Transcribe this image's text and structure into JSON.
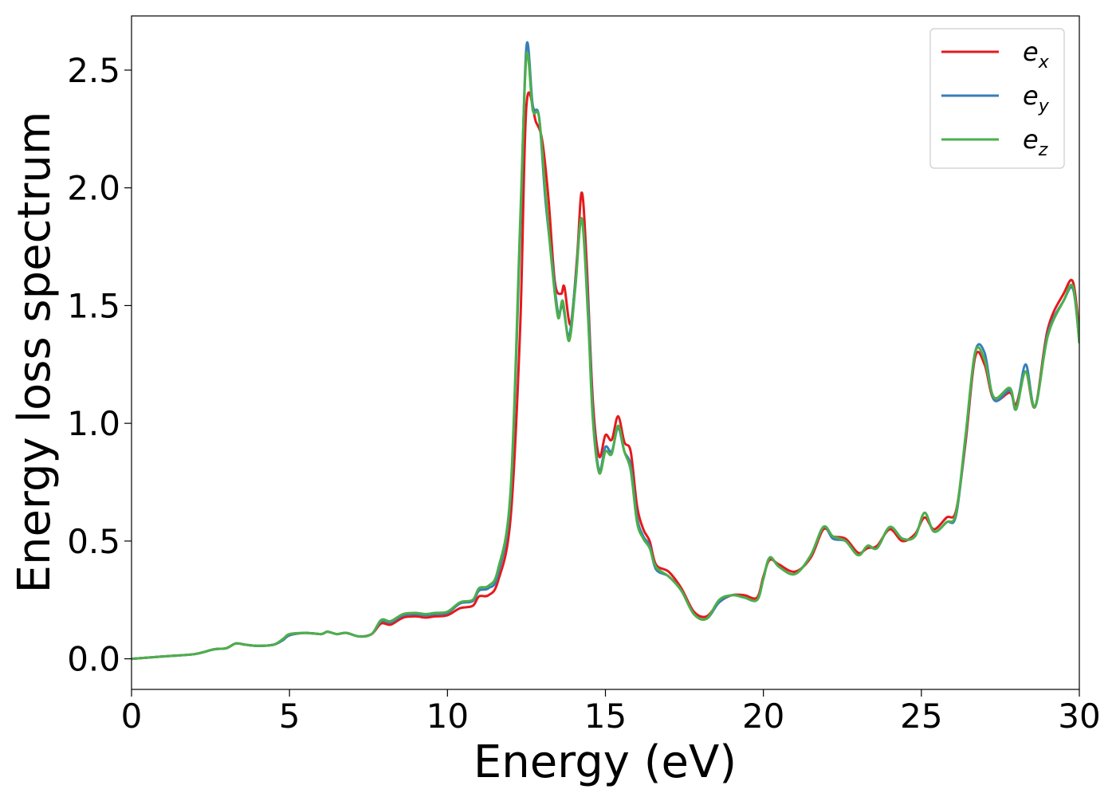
{
  "chart_data": {
    "type": "line",
    "title": "",
    "xlabel": "Energy (eV)",
    "ylabel": "Energy loss spectrum",
    "xlim": [
      0,
      30
    ],
    "ylim": [
      -0.13,
      2.73
    ],
    "xticks": [
      0,
      5,
      10,
      15,
      20,
      25,
      30
    ],
    "xtick_labels": [
      "0",
      "5",
      "10",
      "15",
      "20",
      "25",
      "30"
    ],
    "yticks": [
      0.0,
      0.5,
      1.0,
      1.5,
      2.0,
      2.5
    ],
    "ytick_labels": [
      "0.0",
      "0.5",
      "1.0",
      "1.5",
      "2.0",
      "2.5"
    ],
    "grid": false,
    "legend_position": "top-right",
    "series": [
      {
        "name": "e_x",
        "label_main": "e",
        "label_sub": "x",
        "color": "#e41a1c",
        "points": [
          [
            0,
            0.0
          ],
          [
            1,
            0.01
          ],
          [
            2,
            0.02
          ],
          [
            2.6,
            0.04
          ],
          [
            3.0,
            0.045
          ],
          [
            3.3,
            0.065
          ],
          [
            3.6,
            0.06
          ],
          [
            4.0,
            0.055
          ],
          [
            4.5,
            0.06
          ],
          [
            4.8,
            0.08
          ],
          [
            5.0,
            0.1
          ],
          [
            5.5,
            0.11
          ],
          [
            6.0,
            0.105
          ],
          [
            6.2,
            0.115
          ],
          [
            6.5,
            0.105
          ],
          [
            6.8,
            0.11
          ],
          [
            7.2,
            0.095
          ],
          [
            7.6,
            0.105
          ],
          [
            7.9,
            0.15
          ],
          [
            8.2,
            0.145
          ],
          [
            8.6,
            0.175
          ],
          [
            9.0,
            0.18
          ],
          [
            9.3,
            0.175
          ],
          [
            9.6,
            0.18
          ],
          [
            10.0,
            0.185
          ],
          [
            10.4,
            0.215
          ],
          [
            10.8,
            0.225
          ],
          [
            11.0,
            0.265
          ],
          [
            11.3,
            0.27
          ],
          [
            11.6,
            0.33
          ],
          [
            12.0,
            0.6
          ],
          [
            12.3,
            1.4
          ],
          [
            12.5,
            2.35
          ],
          [
            12.8,
            2.28
          ],
          [
            13.0,
            2.2
          ],
          [
            13.2,
            1.95
          ],
          [
            13.4,
            1.6
          ],
          [
            13.6,
            1.55
          ],
          [
            13.7,
            1.58
          ],
          [
            13.9,
            1.42
          ],
          [
            14.1,
            1.7
          ],
          [
            14.25,
            1.98
          ],
          [
            14.4,
            1.7
          ],
          [
            14.6,
            1.1
          ],
          [
            14.8,
            0.86
          ],
          [
            15.0,
            0.95
          ],
          [
            15.2,
            0.93
          ],
          [
            15.4,
            1.03
          ],
          [
            15.6,
            0.92
          ],
          [
            15.8,
            0.88
          ],
          [
            16.0,
            0.65
          ],
          [
            16.2,
            0.55
          ],
          [
            16.4,
            0.5
          ],
          [
            16.6,
            0.4
          ],
          [
            17.0,
            0.37
          ],
          [
            17.4,
            0.3
          ],
          [
            17.8,
            0.2
          ],
          [
            18.2,
            0.18
          ],
          [
            18.6,
            0.24
          ],
          [
            19.0,
            0.27
          ],
          [
            19.4,
            0.27
          ],
          [
            19.8,
            0.26
          ],
          [
            20.0,
            0.35
          ],
          [
            20.2,
            0.42
          ],
          [
            20.5,
            0.4
          ],
          [
            21.0,
            0.37
          ],
          [
            21.5,
            0.43
          ],
          [
            21.9,
            0.55
          ],
          [
            22.2,
            0.52
          ],
          [
            22.6,
            0.51
          ],
          [
            23.0,
            0.45
          ],
          [
            23.3,
            0.47
          ],
          [
            23.6,
            0.48
          ],
          [
            24.0,
            0.55
          ],
          [
            24.4,
            0.5
          ],
          [
            24.8,
            0.53
          ],
          [
            25.1,
            0.6
          ],
          [
            25.4,
            0.55
          ],
          [
            25.8,
            0.6
          ],
          [
            26.1,
            0.63
          ],
          [
            26.4,
            0.92
          ],
          [
            26.7,
            1.28
          ],
          [
            27.0,
            1.25
          ],
          [
            27.3,
            1.1
          ],
          [
            27.8,
            1.13
          ],
          [
            28.0,
            1.08
          ],
          [
            28.3,
            1.22
          ],
          [
            28.6,
            1.07
          ],
          [
            29.0,
            1.4
          ],
          [
            29.5,
            1.55
          ],
          [
            29.8,
            1.6
          ],
          [
            30,
            1.38
          ]
        ]
      },
      {
        "name": "e_y",
        "label_main": "e",
        "label_sub": "y",
        "color": "#377eb8",
        "points": [
          [
            0,
            0.0
          ],
          [
            1,
            0.01
          ],
          [
            2,
            0.02
          ],
          [
            2.6,
            0.04
          ],
          [
            3.0,
            0.045
          ],
          [
            3.3,
            0.065
          ],
          [
            3.6,
            0.06
          ],
          [
            4.0,
            0.055
          ],
          [
            4.5,
            0.06
          ],
          [
            4.8,
            0.08
          ],
          [
            5.0,
            0.1
          ],
          [
            5.5,
            0.11
          ],
          [
            6.0,
            0.105
          ],
          [
            6.2,
            0.115
          ],
          [
            6.5,
            0.105
          ],
          [
            6.8,
            0.11
          ],
          [
            7.2,
            0.095
          ],
          [
            7.6,
            0.105
          ],
          [
            7.9,
            0.16
          ],
          [
            8.2,
            0.155
          ],
          [
            8.6,
            0.185
          ],
          [
            9.0,
            0.19
          ],
          [
            9.3,
            0.185
          ],
          [
            9.6,
            0.19
          ],
          [
            10.0,
            0.195
          ],
          [
            10.4,
            0.235
          ],
          [
            10.8,
            0.245
          ],
          [
            11.0,
            0.29
          ],
          [
            11.3,
            0.3
          ],
          [
            11.6,
            0.36
          ],
          [
            12.0,
            0.7
          ],
          [
            12.3,
            1.8
          ],
          [
            12.5,
            2.6
          ],
          [
            12.7,
            2.35
          ],
          [
            12.9,
            2.3
          ],
          [
            13.1,
            1.95
          ],
          [
            13.3,
            1.7
          ],
          [
            13.5,
            1.47
          ],
          [
            13.65,
            1.5
          ],
          [
            13.85,
            1.37
          ],
          [
            14.05,
            1.6
          ],
          [
            14.25,
            1.87
          ],
          [
            14.45,
            1.5
          ],
          [
            14.6,
            1.05
          ],
          [
            14.8,
            0.8
          ],
          [
            15.0,
            0.9
          ],
          [
            15.2,
            0.88
          ],
          [
            15.4,
            0.98
          ],
          [
            15.6,
            0.88
          ],
          [
            15.8,
            0.82
          ],
          [
            16.0,
            0.6
          ],
          [
            16.2,
            0.52
          ],
          [
            16.4,
            0.48
          ],
          [
            16.6,
            0.38
          ],
          [
            17.0,
            0.35
          ],
          [
            17.4,
            0.29
          ],
          [
            17.8,
            0.19
          ],
          [
            18.2,
            0.17
          ],
          [
            18.6,
            0.24
          ],
          [
            19.0,
            0.27
          ],
          [
            19.4,
            0.26
          ],
          [
            19.8,
            0.25
          ],
          [
            20.0,
            0.34
          ],
          [
            20.2,
            0.43
          ],
          [
            20.5,
            0.39
          ],
          [
            21.0,
            0.36
          ],
          [
            21.5,
            0.44
          ],
          [
            21.9,
            0.56
          ],
          [
            22.2,
            0.51
          ],
          [
            22.6,
            0.5
          ],
          [
            23.0,
            0.44
          ],
          [
            23.3,
            0.48
          ],
          [
            23.6,
            0.47
          ],
          [
            24.0,
            0.56
          ],
          [
            24.4,
            0.51
          ],
          [
            24.8,
            0.52
          ],
          [
            25.1,
            0.62
          ],
          [
            25.4,
            0.54
          ],
          [
            25.8,
            0.58
          ],
          [
            26.1,
            0.61
          ],
          [
            26.4,
            0.94
          ],
          [
            26.7,
            1.3
          ],
          [
            27.0,
            1.3
          ],
          [
            27.3,
            1.1
          ],
          [
            27.8,
            1.14
          ],
          [
            28.0,
            1.06
          ],
          [
            28.3,
            1.25
          ],
          [
            28.6,
            1.07
          ],
          [
            29.0,
            1.38
          ],
          [
            29.5,
            1.52
          ],
          [
            29.8,
            1.57
          ],
          [
            30,
            1.35
          ]
        ]
      },
      {
        "name": "e_z",
        "label_main": "e",
        "label_sub": "z",
        "color": "#4daf4a",
        "points": [
          [
            0,
            0.0
          ],
          [
            1,
            0.01
          ],
          [
            2,
            0.02
          ],
          [
            2.6,
            0.04
          ],
          [
            3.0,
            0.045
          ],
          [
            3.3,
            0.065
          ],
          [
            3.6,
            0.06
          ],
          [
            4.0,
            0.055
          ],
          [
            4.5,
            0.06
          ],
          [
            4.8,
            0.085
          ],
          [
            5.0,
            0.105
          ],
          [
            5.5,
            0.11
          ],
          [
            6.0,
            0.105
          ],
          [
            6.2,
            0.115
          ],
          [
            6.5,
            0.105
          ],
          [
            6.8,
            0.11
          ],
          [
            7.2,
            0.095
          ],
          [
            7.6,
            0.105
          ],
          [
            7.9,
            0.165
          ],
          [
            8.2,
            0.16
          ],
          [
            8.6,
            0.19
          ],
          [
            9.0,
            0.195
          ],
          [
            9.3,
            0.19
          ],
          [
            9.6,
            0.195
          ],
          [
            10.0,
            0.2
          ],
          [
            10.4,
            0.24
          ],
          [
            10.8,
            0.25
          ],
          [
            11.0,
            0.3
          ],
          [
            11.3,
            0.31
          ],
          [
            11.6,
            0.38
          ],
          [
            12.0,
            0.72
          ],
          [
            12.3,
            1.85
          ],
          [
            12.5,
            2.56
          ],
          [
            12.7,
            2.33
          ],
          [
            12.9,
            2.3
          ],
          [
            13.1,
            1.98
          ],
          [
            13.3,
            1.68
          ],
          [
            13.5,
            1.45
          ],
          [
            13.65,
            1.52
          ],
          [
            13.85,
            1.35
          ],
          [
            14.05,
            1.58
          ],
          [
            14.25,
            1.87
          ],
          [
            14.45,
            1.45
          ],
          [
            14.6,
            1.02
          ],
          [
            14.8,
            0.79
          ],
          [
            15.0,
            0.88
          ],
          [
            15.2,
            0.87
          ],
          [
            15.4,
            0.99
          ],
          [
            15.6,
            0.88
          ],
          [
            15.8,
            0.8
          ],
          [
            16.0,
            0.58
          ],
          [
            16.2,
            0.51
          ],
          [
            16.4,
            0.47
          ],
          [
            16.6,
            0.39
          ],
          [
            17.0,
            0.35
          ],
          [
            17.4,
            0.29
          ],
          [
            17.8,
            0.19
          ],
          [
            18.2,
            0.17
          ],
          [
            18.6,
            0.25
          ],
          [
            19.0,
            0.27
          ],
          [
            19.4,
            0.26
          ],
          [
            19.8,
            0.25
          ],
          [
            20.0,
            0.34
          ],
          [
            20.2,
            0.43
          ],
          [
            20.5,
            0.39
          ],
          [
            21.0,
            0.36
          ],
          [
            21.5,
            0.44
          ],
          [
            21.9,
            0.56
          ],
          [
            22.2,
            0.52
          ],
          [
            22.6,
            0.5
          ],
          [
            23.0,
            0.44
          ],
          [
            23.3,
            0.48
          ],
          [
            23.6,
            0.47
          ],
          [
            24.0,
            0.56
          ],
          [
            24.4,
            0.51
          ],
          [
            24.8,
            0.52
          ],
          [
            25.1,
            0.62
          ],
          [
            25.4,
            0.54
          ],
          [
            25.8,
            0.58
          ],
          [
            26.1,
            0.62
          ],
          [
            26.4,
            0.95
          ],
          [
            26.7,
            1.3
          ],
          [
            27.0,
            1.27
          ],
          [
            27.3,
            1.11
          ],
          [
            27.8,
            1.15
          ],
          [
            28.0,
            1.06
          ],
          [
            28.3,
            1.22
          ],
          [
            28.6,
            1.07
          ],
          [
            29.0,
            1.37
          ],
          [
            29.5,
            1.52
          ],
          [
            29.8,
            1.58
          ],
          [
            30,
            1.34
          ]
        ]
      }
    ]
  }
}
